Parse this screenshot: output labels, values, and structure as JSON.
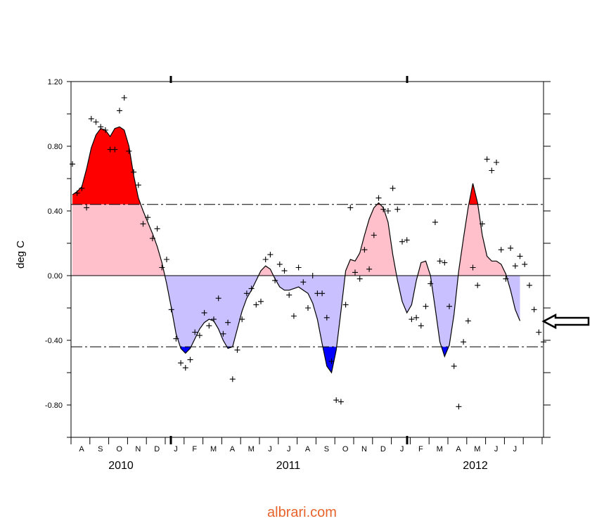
{
  "chart_data": {
    "type": "area",
    "ylabel": "deg C",
    "ylim": [
      -1.0,
      1.2
    ],
    "yticks": [
      1.2,
      0.8,
      0.4,
      0.0,
      -0.4,
      -0.8
    ],
    "ytick_labels": [
      "1.20",
      "0.80",
      "0.40",
      "0.00",
      "-0.40",
      "-0.80"
    ],
    "month_labels": [
      "A",
      "S",
      "O",
      "N",
      "D",
      "J",
      "F",
      "M",
      "A",
      "M",
      "J",
      "J",
      "A",
      "S",
      "O",
      "N",
      "D",
      "J",
      "F",
      "M",
      "A",
      "M",
      "J",
      "J"
    ],
    "year_labels": [
      "2010",
      "2011",
      "2012"
    ],
    "thresholds": [
      0.44,
      -0.44
    ],
    "zero_line": 0.0,
    "colors": {
      "strong_warm": "#ff0000",
      "warm": "#ffc0cb",
      "cool": "#c8c0ff",
      "strong_cool": "#0000ff",
      "line": "#000000"
    },
    "series": [
      {
        "kind": "smoothed",
        "points": [
          [
            0.0,
            0.5
          ],
          [
            0.25,
            0.52
          ],
          [
            0.5,
            0.55
          ],
          [
            0.75,
            0.66
          ],
          [
            1.0,
            0.79
          ],
          [
            1.25,
            0.87
          ],
          [
            1.5,
            0.91
          ],
          [
            1.75,
            0.9
          ],
          [
            2.0,
            0.86
          ],
          [
            2.25,
            0.91
          ],
          [
            2.5,
            0.92
          ],
          [
            2.75,
            0.9
          ],
          [
            3.0,
            0.8
          ],
          [
            3.25,
            0.62
          ],
          [
            3.5,
            0.48
          ],
          [
            3.75,
            0.4
          ],
          [
            4.0,
            0.33
          ],
          [
            4.25,
            0.26
          ],
          [
            4.5,
            0.18
          ],
          [
            4.75,
            0.08
          ],
          [
            5.0,
            -0.05
          ],
          [
            5.25,
            -0.2
          ],
          [
            5.5,
            -0.36
          ],
          [
            5.75,
            -0.45
          ],
          [
            6.0,
            -0.48
          ],
          [
            6.25,
            -0.45
          ],
          [
            6.5,
            -0.39
          ],
          [
            6.75,
            -0.33
          ],
          [
            7.0,
            -0.29
          ],
          [
            7.25,
            -0.27
          ],
          [
            7.5,
            -0.28
          ],
          [
            7.75,
            -0.33
          ],
          [
            8.0,
            -0.4
          ],
          [
            8.25,
            -0.45
          ],
          [
            8.5,
            -0.44
          ],
          [
            8.75,
            -0.33
          ],
          [
            9.0,
            -0.22
          ],
          [
            9.25,
            -0.14
          ],
          [
            9.5,
            -0.09
          ],
          [
            9.75,
            -0.03
          ],
          [
            10.0,
            0.03
          ],
          [
            10.25,
            0.06
          ],
          [
            10.5,
            0.04
          ],
          [
            10.75,
            -0.02
          ],
          [
            11.0,
            -0.07
          ],
          [
            11.25,
            -0.09
          ],
          [
            11.5,
            -0.09
          ],
          [
            11.75,
            -0.08
          ],
          [
            12.0,
            -0.07
          ],
          [
            12.25,
            -0.09
          ],
          [
            12.5,
            -0.11
          ],
          [
            12.75,
            -0.17
          ],
          [
            13.0,
            -0.27
          ],
          [
            13.25,
            -0.42
          ],
          [
            13.5,
            -0.56
          ],
          [
            13.75,
            -0.6
          ],
          [
            14.0,
            -0.46
          ],
          [
            14.25,
            -0.22
          ],
          [
            14.5,
            0.03
          ],
          [
            14.75,
            0.1
          ],
          [
            15.0,
            0.09
          ],
          [
            15.25,
            0.14
          ],
          [
            15.5,
            0.25
          ],
          [
            15.75,
            0.35
          ],
          [
            16.0,
            0.42
          ],
          [
            16.25,
            0.45
          ],
          [
            16.5,
            0.42
          ],
          [
            16.75,
            0.33
          ],
          [
            17.0,
            0.13
          ],
          [
            17.25,
            -0.03
          ],
          [
            17.5,
            -0.16
          ],
          [
            17.75,
            -0.23
          ],
          [
            18.0,
            -0.18
          ],
          [
            18.25,
            -0.03
          ],
          [
            18.5,
            0.08
          ],
          [
            18.75,
            0.09
          ],
          [
            19.0,
            0.0
          ],
          [
            19.25,
            -0.2
          ],
          [
            19.5,
            -0.41
          ],
          [
            19.75,
            -0.5
          ],
          [
            20.0,
            -0.43
          ],
          [
            20.25,
            -0.24
          ],
          [
            20.5,
            0.03
          ],
          [
            20.75,
            0.23
          ],
          [
            21.0,
            0.42
          ],
          [
            21.25,
            0.57
          ],
          [
            21.5,
            0.45
          ],
          [
            21.75,
            0.25
          ],
          [
            22.0,
            0.12
          ],
          [
            22.25,
            0.09
          ],
          [
            22.5,
            0.09
          ],
          [
            22.75,
            0.07
          ],
          [
            23.0,
            0.01
          ],
          [
            23.25,
            -0.09
          ],
          [
            23.5,
            -0.21
          ],
          [
            23.75,
            -0.28
          ]
        ]
      },
      {
        "kind": "observations",
        "points": [
          [
            0.0,
            0.69
          ],
          [
            0.25,
            0.51
          ],
          [
            0.5,
            0.54
          ],
          [
            0.75,
            0.42
          ],
          [
            1.0,
            0.97
          ],
          [
            1.25,
            0.95
          ],
          [
            1.5,
            0.92
          ],
          [
            1.75,
            0.9
          ],
          [
            2.0,
            0.78
          ],
          [
            2.25,
            0.78
          ],
          [
            2.5,
            1.02
          ],
          [
            2.75,
            1.1
          ],
          [
            3.0,
            0.77
          ],
          [
            3.25,
            0.64
          ],
          [
            3.5,
            0.56
          ],
          [
            3.75,
            0.32
          ],
          [
            4.0,
            0.36
          ],
          [
            4.25,
            0.23
          ],
          [
            4.5,
            0.29
          ],
          [
            4.75,
            0.05
          ],
          [
            5.0,
            0.1
          ],
          [
            5.25,
            -0.21
          ],
          [
            5.5,
            -0.39
          ],
          [
            5.75,
            -0.54
          ],
          [
            6.0,
            -0.57
          ],
          [
            6.25,
            -0.52
          ],
          [
            6.5,
            -0.35
          ],
          [
            6.75,
            -0.37
          ],
          [
            7.0,
            -0.23
          ],
          [
            7.25,
            -0.31
          ],
          [
            7.5,
            -0.27
          ],
          [
            7.75,
            -0.14
          ],
          [
            8.0,
            -0.36
          ],
          [
            8.25,
            -0.29
          ],
          [
            8.5,
            -0.64
          ],
          [
            8.75,
            -0.46
          ],
          [
            9.0,
            -0.27
          ],
          [
            9.25,
            -0.11
          ],
          [
            9.5,
            -0.08
          ],
          [
            9.75,
            -0.18
          ],
          [
            10.0,
            -0.16
          ],
          [
            10.25,
            0.1
          ],
          [
            10.5,
            0.13
          ],
          [
            10.75,
            -0.03
          ],
          [
            11.0,
            0.07
          ],
          [
            11.25,
            0.03
          ],
          [
            11.5,
            -0.12
          ],
          [
            11.75,
            -0.25
          ],
          [
            12.0,
            0.05
          ],
          [
            12.25,
            -0.04
          ],
          [
            12.5,
            -0.2
          ],
          [
            12.75,
            0.0
          ],
          [
            13.0,
            -0.11
          ],
          [
            13.25,
            -0.11
          ],
          [
            13.5,
            -0.26
          ],
          [
            13.75,
            -0.53
          ],
          [
            14.0,
            -0.77
          ],
          [
            14.25,
            -0.78
          ],
          [
            14.5,
            -0.18
          ],
          [
            14.75,
            0.42
          ],
          [
            15.0,
            0.02
          ],
          [
            15.25,
            -0.02
          ],
          [
            15.5,
            0.16
          ],
          [
            15.75,
            0.04
          ],
          [
            16.0,
            0.25
          ],
          [
            16.25,
            0.48
          ],
          [
            16.5,
            0.41
          ],
          [
            16.75,
            0.4
          ],
          [
            17.0,
            0.54
          ],
          [
            17.25,
            0.41
          ],
          [
            17.5,
            0.21
          ],
          [
            17.75,
            0.22
          ],
          [
            18.0,
            -0.27
          ],
          [
            18.25,
            -0.26
          ],
          [
            18.5,
            -0.31
          ],
          [
            18.75,
            -0.19
          ],
          [
            19.0,
            -0.05
          ],
          [
            19.25,
            0.33
          ],
          [
            19.5,
            0.09
          ],
          [
            19.75,
            0.08
          ],
          [
            20.0,
            -0.19
          ],
          [
            20.25,
            -0.56
          ],
          [
            20.5,
            -0.81
          ],
          [
            20.75,
            -0.41
          ],
          [
            21.0,
            -0.28
          ],
          [
            21.25,
            0.05
          ],
          [
            21.5,
            -0.06
          ],
          [
            21.75,
            0.32
          ],
          [
            22.0,
            0.72
          ],
          [
            22.25,
            0.65
          ],
          [
            22.5,
            0.7
          ],
          [
            22.75,
            0.16
          ],
          [
            23.0,
            -0.02
          ],
          [
            23.25,
            0.17
          ],
          [
            23.5,
            0.06
          ],
          [
            23.75,
            0.12
          ],
          [
            24.0,
            0.07
          ],
          [
            24.25,
            -0.06
          ],
          [
            24.5,
            -0.21
          ],
          [
            24.75,
            -0.35
          ],
          [
            25.0,
            -0.41
          ]
        ]
      }
    ]
  },
  "watermark": "albrari.com",
  "arrow_icon": "arrow-left-outline-icon"
}
